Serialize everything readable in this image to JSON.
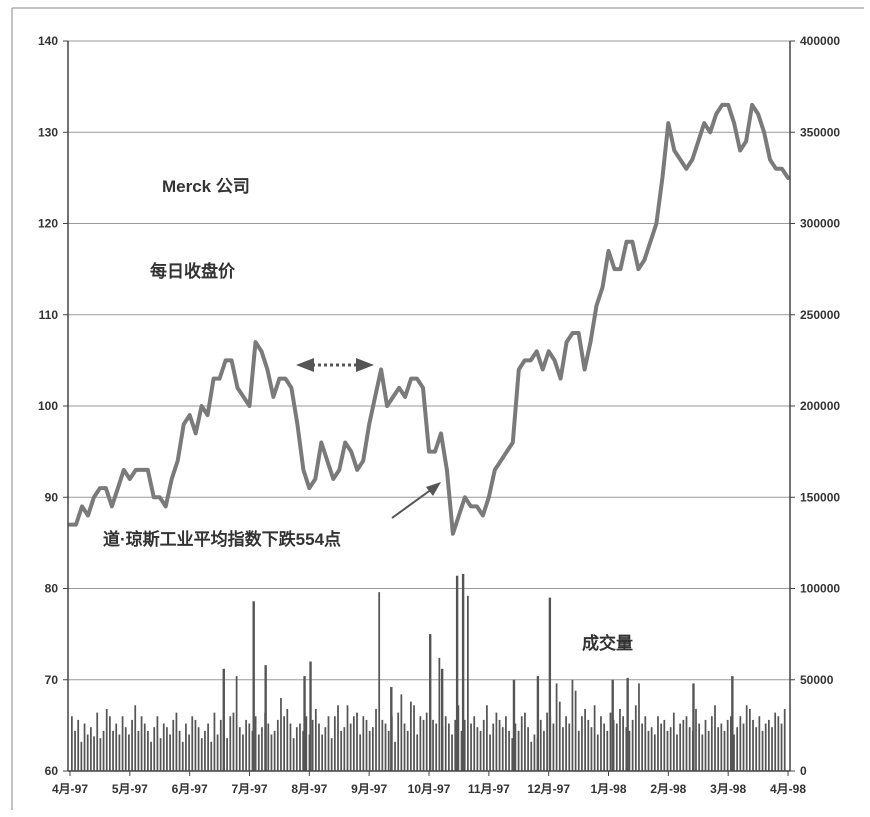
{
  "chart_data": {
    "type": "line",
    "title": "",
    "annotations": {
      "company": "Merck 公司",
      "price_label": "每日收盘价",
      "dow_drop": "道·琼斯工业平均指数下跌554点",
      "volume_label": "成交量"
    },
    "x_tick_labels": [
      "4月-97",
      "5月-97",
      "6月-97",
      "7月-97",
      "8月-97",
      "9月-97",
      "10月-97",
      "11月-97",
      "12月-97",
      "1月-98",
      "2月-98",
      "3月-98",
      "4月-98"
    ],
    "y_left": {
      "min": 60,
      "max": 140,
      "ticks": [
        "60",
        "70",
        "80",
        "90",
        "100",
        "110",
        "120",
        "130",
        "140"
      ]
    },
    "y_right": {
      "min": 0,
      "max": 400000,
      "ticks": [
        "0",
        "50000",
        "100000",
        "150000",
        "200000",
        "250000",
        "300000",
        "350000",
        "400000"
      ]
    },
    "grid": true,
    "colors": {
      "price_line": "#7a7a7a",
      "volume_bars": "#555555",
      "grid": "#9a9a9a",
      "axis": "#444444",
      "arrow": "#555555"
    },
    "series": [
      {
        "name": "每日收盘价",
        "axis": "left",
        "x": [
          0,
          0.1,
          0.2,
          0.3,
          0.4,
          0.5,
          0.6,
          0.7,
          0.8,
          0.9,
          1.0,
          1.1,
          1.2,
          1.3,
          1.4,
          1.5,
          1.6,
          1.7,
          1.8,
          1.9,
          2.0,
          2.1,
          2.2,
          2.3,
          2.4,
          2.5,
          2.6,
          2.7,
          2.8,
          2.9,
          3.0,
          3.1,
          3.2,
          3.3,
          3.4,
          3.5,
          3.6,
          3.7,
          3.8,
          3.9,
          4.0,
          4.1,
          4.2,
          4.3,
          4.4,
          4.5,
          4.6,
          4.7,
          4.8,
          4.9,
          5.0,
          5.1,
          5.2,
          5.3,
          5.4,
          5.5,
          5.6,
          5.7,
          5.8,
          5.9,
          6.0,
          6.1,
          6.2,
          6.3,
          6.4,
          6.5,
          6.6,
          6.7,
          6.8,
          6.9,
          7.0,
          7.1,
          7.2,
          7.3,
          7.4,
          7.5,
          7.6,
          7.7,
          7.8,
          7.9,
          8.0,
          8.1,
          8.2,
          8.3,
          8.4,
          8.5,
          8.6,
          8.7,
          8.8,
          8.9,
          9.0,
          9.1,
          9.2,
          9.3,
          9.4,
          9.5,
          9.6,
          9.7,
          9.8,
          9.9,
          10.0,
          10.1,
          10.2,
          10.3,
          10.4,
          10.5,
          10.6,
          10.7,
          10.8,
          10.9,
          11.0,
          11.1,
          11.2,
          11.3,
          11.4,
          11.5,
          11.6,
          11.7,
          11.8,
          11.9,
          12.0
        ],
        "values": [
          87,
          87,
          89,
          88,
          90,
          91,
          91,
          89,
          91,
          93,
          92,
          93,
          93,
          93,
          90,
          90,
          89,
          92,
          94,
          98,
          99,
          97,
          100,
          99,
          103,
          103,
          105,
          105,
          102,
          101,
          100,
          107,
          106,
          104,
          101,
          103,
          103,
          102,
          98,
          93,
          91,
          92,
          96,
          94,
          92,
          93,
          96,
          95,
          93,
          94,
          98,
          101,
          104,
          100,
          101,
          102,
          101,
          103,
          103,
          102,
          95,
          95,
          97,
          93,
          86,
          88,
          90,
          89,
          89,
          88,
          90,
          93,
          94,
          95,
          96,
          104,
          105,
          105,
          106,
          104,
          106,
          105,
          103,
          107,
          108,
          108,
          104,
          107,
          111,
          113,
          117,
          115,
          115,
          118,
          118,
          115,
          116,
          118,
          120,
          125,
          131,
          128,
          127,
          126,
          127,
          129,
          131,
          130,
          132,
          133,
          133,
          131,
          128,
          129,
          133,
          132,
          130,
          127,
          126,
          126,
          125
        ]
      },
      {
        "name": "成交量",
        "axis": "right",
        "values": [
          30000,
          22000,
          28000,
          16000,
          26000,
          20000,
          24000,
          19000,
          32000,
          18000,
          22000,
          34000,
          30000,
          22000,
          26000,
          20000,
          30000,
          24000,
          20000,
          28000,
          36000,
          22000,
          30000,
          26000,
          22000,
          16000,
          24000,
          30000,
          18000,
          26000,
          24000,
          20000,
          28000,
          32000,
          22000,
          16000,
          26000,
          20000,
          30000,
          28000,
          24000,
          18000,
          22000,
          26000,
          16000,
          32000,
          20000,
          28000,
          24000,
          18000,
          30000,
          32000,
          52000,
          24000,
          20000,
          28000,
          26000,
          22000,
          30000,
          20000,
          24000,
          32000,
          26000,
          20000,
          22000,
          28000,
          40000,
          30000,
          34000,
          26000,
          18000,
          24000,
          26000,
          22000,
          30000,
          20000,
          28000,
          34000,
          26000,
          20000,
          24000,
          30000,
          18000,
          30000,
          36000,
          22000,
          24000,
          36000,
          26000,
          30000,
          32000,
          20000,
          30000,
          28000,
          22000,
          24000,
          34000,
          98000,
          28000,
          26000,
          22000,
          30000,
          16000,
          32000,
          42000,
          26000,
          22000,
          38000,
          36000,
          20000,
          30000,
          28000,
          32000,
          22000,
          28000,
          26000,
          62000,
          24000,
          30000,
          26000,
          20000,
          28000,
          36000,
          22000,
          28000,
          96000,
          26000,
          30000,
          24000,
          22000,
          28000,
          36000,
          20000,
          26000,
          32000,
          28000,
          24000,
          30000,
          22000,
          18000,
          26000,
          22000,
          30000,
          32000,
          24000,
          16000,
          20000,
          18000,
          28000,
          22000,
          32000,
          30000,
          26000,
          48000,
          38000,
          24000,
          30000,
          26000,
          50000,
          44000,
          22000,
          30000,
          34000,
          28000,
          24000,
          36000,
          20000,
          30000,
          26000,
          22000,
          32000,
          28000,
          26000,
          34000,
          30000,
          24000,
          22000,
          28000,
          36000,
          48000,
          26000,
          30000,
          22000,
          24000,
          20000,
          30000,
          26000,
          28000,
          22000,
          24000,
          32000,
          20000,
          26000,
          28000,
          30000,
          24000,
          22000,
          34000,
          26000,
          20000,
          28000,
          22000,
          30000,
          36000,
          24000,
          26000,
          22000,
          28000,
          30000,
          20000,
          24000,
          30000,
          26000,
          36000,
          34000,
          28000,
          24000,
          30000,
          22000,
          26000,
          28000,
          24000,
          32000,
          30000,
          26000,
          34000
        ],
        "spikes": [
          {
            "month": 2.55,
            "value": 56000
          },
          {
            "month": 3.05,
            "value": 93000
          },
          {
            "month": 3.25,
            "value": 58000
          },
          {
            "month": 3.9,
            "value": 52000
          },
          {
            "month": 4.0,
            "value": 60000
          },
          {
            "month": 5.35,
            "value": 46000
          },
          {
            "month": 6.0,
            "value": 75000
          },
          {
            "month": 6.2,
            "value": 56000
          },
          {
            "month": 6.45,
            "value": 107000
          },
          {
            "month": 6.55,
            "value": 108000
          },
          {
            "month": 7.4,
            "value": 50000
          },
          {
            "month": 7.8,
            "value": 52000
          },
          {
            "month": 8.0,
            "value": 95000
          },
          {
            "month": 9.05,
            "value": 50000
          },
          {
            "month": 9.3,
            "value": 51000
          },
          {
            "month": 10.4,
            "value": 48000
          },
          {
            "month": 11.05,
            "value": 52000
          }
        ]
      }
    ]
  }
}
